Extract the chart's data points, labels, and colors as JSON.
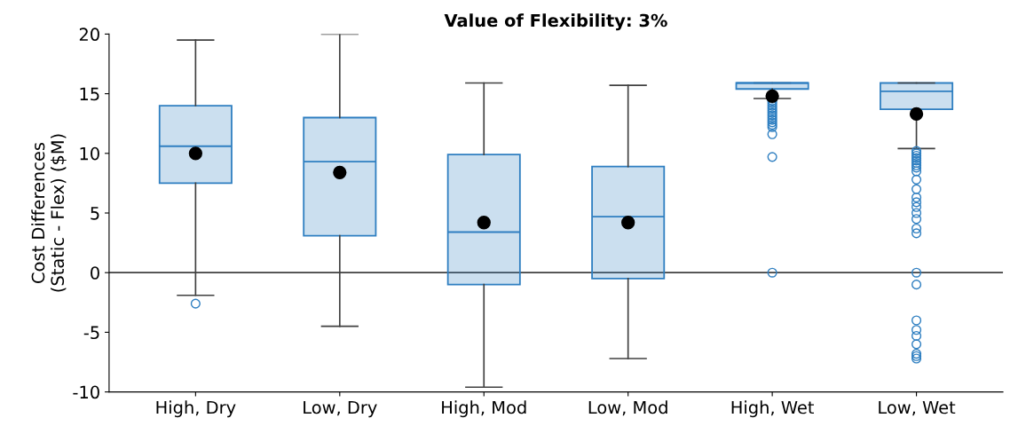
{
  "chart_data": {
    "type": "box",
    "title": "Value of Flexibility: 3%",
    "ylabel": "Cost Differences\n(Static - Flex) ($M)",
    "categories": [
      "High, Dry",
      "Low, Dry",
      "High, Mod",
      "Low, Mod",
      "High, Wet",
      "Low, Wet"
    ],
    "color": "#2f7fc1",
    "boxes": [
      {
        "low": -1.9,
        "q1": 7.5,
        "median": 10.6,
        "q3": 14.0,
        "high": 19.5,
        "mean": 10.0,
        "outliers": [
          -2.6
        ]
      },
      {
        "low": -4.5,
        "q1": 3.1,
        "median": 9.3,
        "q3": 13.0,
        "high": 20.0,
        "mean": 8.4
      },
      {
        "low": -9.6,
        "q1": -1.0,
        "median": 3.4,
        "q3": 9.9,
        "high": 15.9,
        "mean": 4.2
      },
      {
        "low": -7.2,
        "q1": -0.5,
        "median": 4.7,
        "q3": 8.9,
        "high": 15.7,
        "mean": 4.2
      },
      {
        "low": 14.6,
        "q1": 15.4,
        "median": 15.9,
        "q3": 15.9,
        "high": 15.9,
        "mean": 14.8,
        "outliers": [
          14.4,
          14.2,
          14.0,
          13.8,
          13.6,
          13.4,
          13.2,
          13.0,
          12.8,
          12.6,
          12.4,
          12.2,
          11.6,
          9.7,
          0
        ]
      },
      {
        "low": 10.4,
        "q1": 13.7,
        "median": 15.2,
        "q3": 15.9,
        "high": 15.9,
        "mean": 13.3,
        "outliers": [
          10.2,
          10.0,
          9.8,
          9.6,
          9.4,
          9.2,
          9.0,
          8.8,
          8.5,
          7.8,
          7.0,
          6.3,
          5.9,
          5.5,
          5.0,
          4.5,
          3.7,
          3.3,
          0,
          -1.0,
          -4.0,
          -4.8,
          -5.3,
          -6.0,
          -6.8,
          -7.0,
          -7.2
        ]
      }
    ],
    "ylim": [
      -10,
      20
    ],
    "yticks": [
      -10,
      -5,
      0,
      5,
      10,
      15,
      20
    ],
    "ref_lines": [
      {
        "axis": "y",
        "value": 0,
        "color": "#404040"
      }
    ],
    "grid": false
  }
}
